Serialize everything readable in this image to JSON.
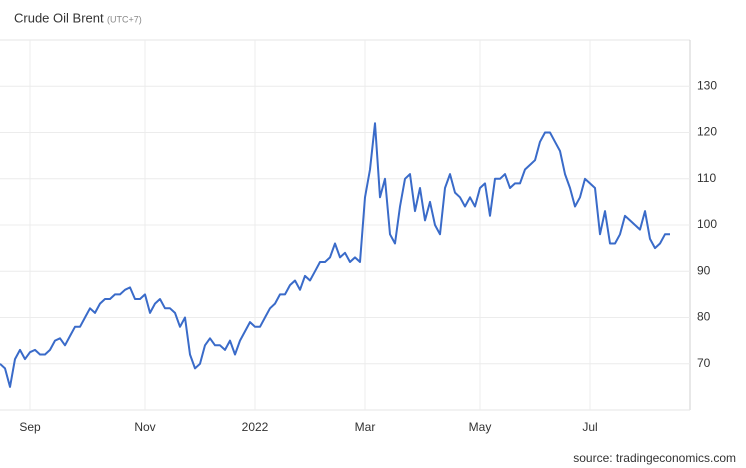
{
  "chart_data": {
    "type": "line",
    "title": "Crude Oil Brent",
    "subtitle": "(UTC+7)",
    "source": "source: tradingeconomics.com",
    "categories": [
      null,
      null,
      null,
      null,
      null,
      null,
      "Sep",
      null,
      null,
      null,
      null,
      null,
      null,
      null,
      null,
      null,
      null,
      null,
      null,
      null,
      null,
      null,
      null,
      null,
      null,
      null,
      null,
      null,
      null,
      "Nov",
      null,
      null,
      null,
      null,
      null,
      null,
      null,
      null,
      null,
      null,
      null,
      null,
      null,
      null,
      null,
      null,
      null,
      null,
      null,
      null,
      null,
      "2022",
      null,
      null,
      null,
      null,
      null,
      null,
      null,
      null,
      null,
      null,
      null,
      null,
      null,
      null,
      null,
      null,
      null,
      null,
      null,
      null,
      null,
      "Mar",
      null,
      null,
      null,
      null,
      null,
      null,
      null,
      null,
      null,
      null,
      null,
      null,
      null,
      null,
      null,
      null,
      null,
      null,
      null,
      null,
      null,
      null,
      "May",
      null,
      null,
      null,
      null,
      null,
      null,
      null,
      null,
      null,
      null,
      null,
      null,
      null,
      null,
      null,
      null,
      null,
      null,
      null,
      null,
      null,
      "Jul",
      null,
      null,
      null,
      null,
      null,
      null,
      null,
      null,
      null,
      null,
      null,
      null,
      null,
      null,
      null,
      null
    ],
    "series": [
      {
        "name": "Crude Oil Brent",
        "color": "#3a6bc9",
        "values": [
          70,
          69,
          65,
          71,
          73,
          71,
          72.5,
          73,
          72,
          72,
          73,
          75,
          75.5,
          74,
          76,
          78,
          78,
          80,
          82,
          81,
          83,
          84,
          84,
          85,
          85,
          86,
          86.5,
          84,
          84,
          85,
          81,
          83,
          84,
          82,
          82,
          81,
          78,
          80,
          72,
          69,
          70,
          74,
          75.5,
          74,
          74,
          73,
          75,
          72,
          75,
          77,
          79,
          78,
          78,
          80,
          82,
          83,
          85,
          85,
          87,
          88,
          86,
          89,
          88,
          90,
          92,
          92,
          93,
          96,
          93,
          94,
          92,
          93,
          92,
          106,
          112,
          122,
          106,
          110,
          98,
          96,
          104,
          110,
          111,
          103,
          108,
          101,
          105,
          100,
          98,
          108,
          111,
          107,
          106,
          104,
          106,
          104,
          108,
          109,
          102,
          110,
          110,
          111,
          108,
          109,
          109,
          112,
          113,
          114,
          118,
          120,
          120,
          118,
          116,
          111,
          108,
          104,
          106,
          110,
          109,
          108,
          98,
          103,
          96,
          96,
          98,
          102,
          101,
          100,
          99,
          103,
          97,
          95,
          96,
          98,
          98
        ]
      }
    ],
    "ylim": [
      60,
      140
    ],
    "yticks": [
      70,
      80,
      90,
      100,
      110,
      120,
      130
    ],
    "grid": true
  }
}
